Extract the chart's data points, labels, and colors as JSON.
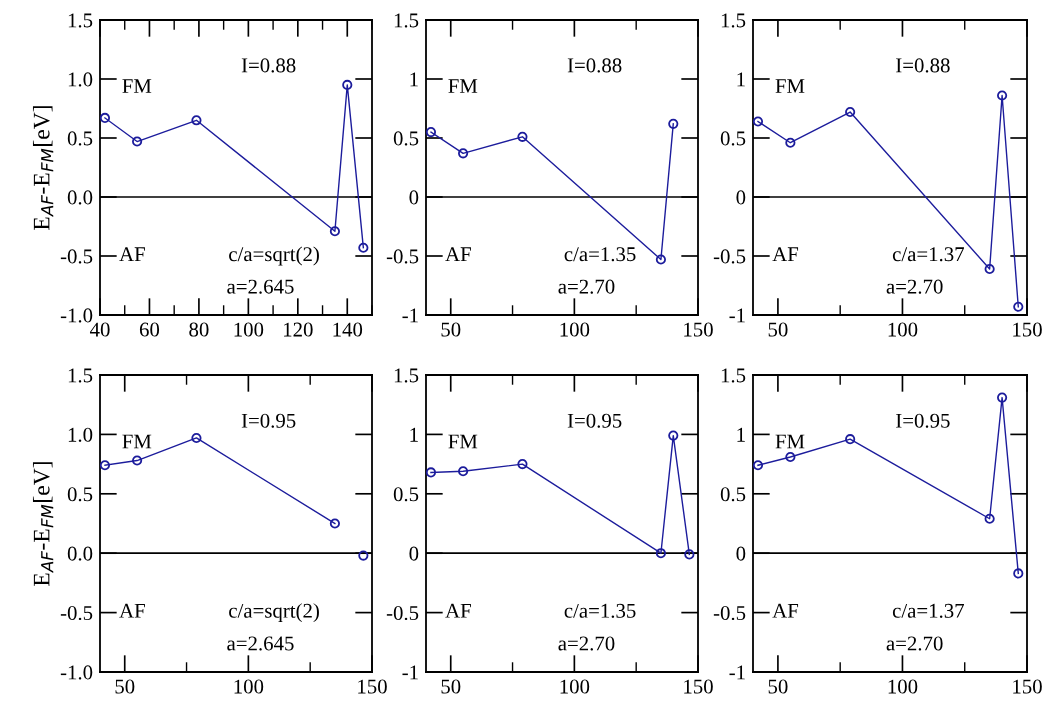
{
  "chart_data": [
    {
      "type": "line",
      "ylabel": "E$_{AF}$-E$_{FM}$[eV]",
      "x": [
        42,
        55,
        79,
        135,
        140,
        146.5
      ],
      "series": [
        {
          "color": "#1c1c9c",
          "values": [
            0.67,
            0.47,
            0.65,
            -0.29,
            0.95,
            -0.43
          ]
        }
      ],
      "marker": "circle",
      "xlim": [
        40,
        150
      ],
      "xticks": [
        40,
        60,
        80,
        100,
        120,
        140
      ],
      "ylim": [
        -1.0,
        1.5
      ],
      "yticks": [
        {
          "value": 1.5,
          "label": "1.5"
        },
        {
          "value": 1.0,
          "label": "1.0"
        },
        {
          "value": 0.5,
          "label": "0.5"
        },
        {
          "value": 0.0,
          "label": "0.0"
        },
        {
          "value": -0.5,
          "label": "-0.5"
        },
        {
          "value": -1.0,
          "label": "-1.0"
        }
      ],
      "ref_lines": [
        {
          "axis": "y",
          "value": 0,
          "color": "#000000"
        }
      ],
      "annotations": [
        "I=0.88",
        "FM",
        "AF",
        "c/a=sqrt(2)",
        "a=2.645"
      ]
    },
    {
      "type": "line",
      "x": [
        42,
        55,
        79,
        135,
        140
      ],
      "series": [
        {
          "color": "#1c1c9c",
          "values": [
            0.55,
            0.37,
            0.51,
            -0.53,
            0.62
          ]
        }
      ],
      "marker": "circle",
      "xlim": [
        40,
        150
      ],
      "xticks": [
        50,
        100,
        150
      ],
      "ylim": [
        -1,
        1.5
      ],
      "yticks": [
        {
          "value": 1.5,
          "label": "1.5"
        },
        {
          "value": 1,
          "label": "1"
        },
        {
          "value": 0.5,
          "label": "0.5"
        },
        {
          "value": 0,
          "label": "0"
        },
        {
          "value": -0.5,
          "label": "-0.5"
        },
        {
          "value": -1,
          "label": "-1"
        }
      ],
      "ref_lines": [
        {
          "axis": "y",
          "value": 0,
          "color": "#000000"
        }
      ],
      "annotations": [
        "I=0.88",
        "FM",
        "AF",
        "c/a=1.35",
        "a=2.70"
      ]
    },
    {
      "type": "line",
      "x": [
        42,
        55,
        79,
        135,
        140,
        146.5
      ],
      "series": [
        {
          "color": "#1c1c9c",
          "values": [
            0.64,
            0.46,
            0.72,
            -0.61,
            0.86,
            -0.93
          ]
        }
      ],
      "marker": "circle",
      "xlim": [
        40,
        150
      ],
      "xticks": [
        50,
        100,
        150
      ],
      "ylim": [
        -1,
        1.5
      ],
      "yticks": [
        {
          "value": 1.5,
          "label": "1.5"
        },
        {
          "value": 1,
          "label": "1"
        },
        {
          "value": 0.5,
          "label": "0.5"
        },
        {
          "value": 0,
          "label": "0"
        },
        {
          "value": -0.5,
          "label": "-0.5"
        },
        {
          "value": -1,
          "label": "-1"
        }
      ],
      "ref_lines": [
        {
          "axis": "y",
          "value": 0,
          "color": "#000000"
        }
      ],
      "annotations": [
        "I=0.88",
        "FM",
        "AF",
        "c/a=1.37",
        "a=2.70"
      ]
    },
    {
      "type": "line",
      "ylabel": "E$_{AF}$-E$_{FM}$[eV]",
      "x": [
        42,
        55,
        79,
        135,
        140,
        146.5
      ],
      "series": [
        {
          "color": "#1c1c9c",
          "values": [
            0.74,
            0.78,
            0.97,
            0.25,
            null,
            -0.02
          ]
        }
      ],
      "marker": "circle",
      "xlim": [
        40,
        150
      ],
      "xticks": [
        50,
        100,
        150
      ],
      "ylim": [
        -1.0,
        1.5
      ],
      "yticks": [
        {
          "value": 1.5,
          "label": "1.5"
        },
        {
          "value": 1.0,
          "label": "1.0"
        },
        {
          "value": 0.5,
          "label": "0.5"
        },
        {
          "value": 0.0,
          "label": "0.0"
        },
        {
          "value": -0.5,
          "label": "-0.5"
        },
        {
          "value": -1.0,
          "label": "-1.0"
        }
      ],
      "ref_lines": [
        {
          "axis": "y",
          "value": 0,
          "color": "#000000"
        }
      ],
      "annotations": [
        "I=0.95",
        "FM",
        "AF",
        "c/a=sqrt(2)",
        "a=2.645"
      ]
    },
    {
      "type": "line",
      "x": [
        42,
        55,
        79,
        135,
        140,
        146.5
      ],
      "series": [
        {
          "color": "#1c1c9c",
          "values": [
            0.68,
            0.69,
            0.75,
            0.0,
            0.99,
            -0.01
          ]
        }
      ],
      "marker": "circle",
      "xlim": [
        40,
        150
      ],
      "xticks": [
        50,
        100,
        150
      ],
      "ylim": [
        -1,
        1.5
      ],
      "yticks": [
        {
          "value": 1.5,
          "label": "1.5"
        },
        {
          "value": 1,
          "label": "1"
        },
        {
          "value": 0.5,
          "label": "0.5"
        },
        {
          "value": 0,
          "label": "0"
        },
        {
          "value": -0.5,
          "label": "-0.5"
        },
        {
          "value": -1,
          "label": "-1"
        }
      ],
      "ref_lines": [
        {
          "axis": "y",
          "value": 0,
          "color": "#000000"
        }
      ],
      "annotations": [
        "I=0.95",
        "FM",
        "AF",
        "c/a=1.35",
        "a=2.70"
      ]
    },
    {
      "type": "line",
      "x": [
        42,
        55,
        79,
        135,
        140,
        146.5
      ],
      "series": [
        {
          "color": "#1c1c9c",
          "values": [
            0.74,
            0.81,
            0.96,
            0.29,
            1.31,
            -0.17
          ]
        }
      ],
      "marker": "circle",
      "xlim": [
        40,
        150
      ],
      "xticks": [
        50,
        100,
        150
      ],
      "ylim": [
        -1,
        1.5
      ],
      "yticks": [
        {
          "value": 1.5,
          "label": "1.5"
        },
        {
          "value": 1,
          "label": "1"
        },
        {
          "value": 0.5,
          "label": "0.5"
        },
        {
          "value": 0,
          "label": "0"
        },
        {
          "value": -0.5,
          "label": "-0.5"
        },
        {
          "value": -1,
          "label": "-1"
        }
      ],
      "ref_lines": [
        {
          "axis": "y",
          "value": 0,
          "color": "#000000"
        }
      ],
      "annotations": [
        "I=0.95",
        "FM",
        "AF",
        "c/a=1.37",
        "a=2.70"
      ]
    }
  ]
}
